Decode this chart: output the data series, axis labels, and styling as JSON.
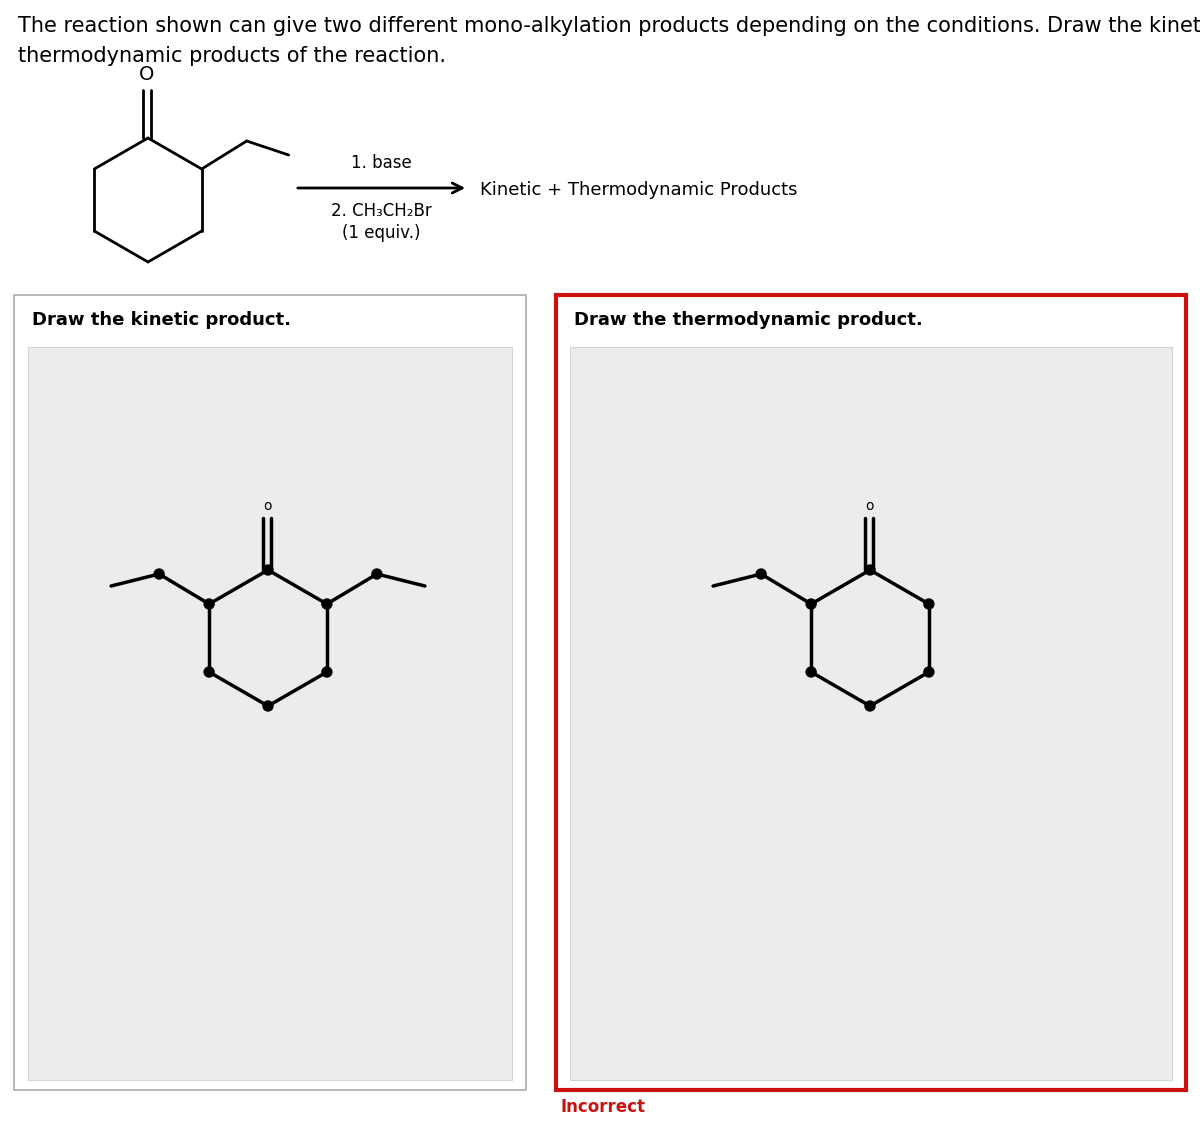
{
  "title_line1": "The reaction shown can give two different mono-alkylation products depending on the conditions. Draw the kinetic and",
  "title_line2": "thermodynamic products of the reaction.",
  "step1": "1. base",
  "step2": "2. CH₃CH₂Br",
  "step3": "(1 equiv.)",
  "arrow_label": "Kinetic + Thermodynamic Products",
  "kinetic_label": "Draw the kinetic product.",
  "thermo_label": "Draw the thermodynamic product.",
  "incorrect_text": "Incorrect",
  "bg_white": "#ffffff",
  "gray_inner": "#ececec",
  "red_border": "#cc1111",
  "black": "#000000",
  "gray_border_light": "#bbbbbb",
  "font_title": 15,
  "font_label": 13,
  "font_step": 12,
  "font_arrow_label": 13,
  "font_incorrect": 12
}
